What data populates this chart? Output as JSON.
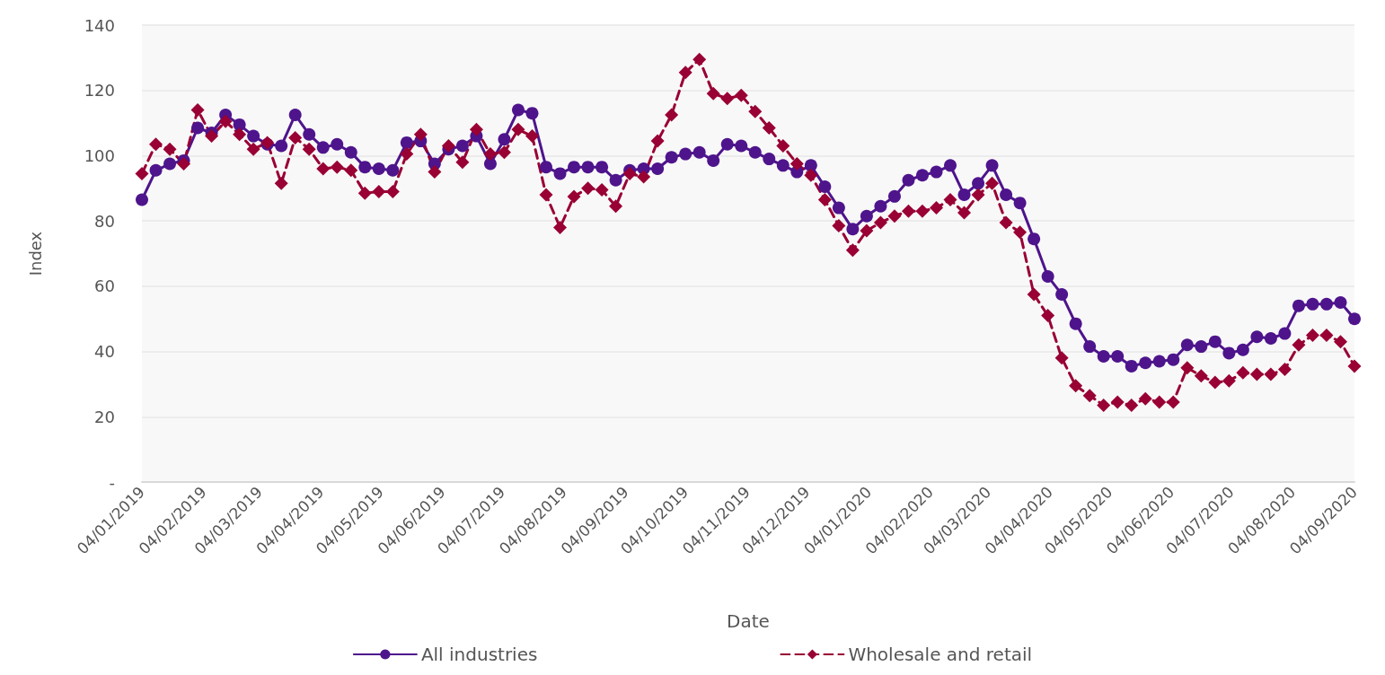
{
  "chart_data": {
    "type": "line",
    "xlabel": "Date",
    "ylabel": "Index",
    "legend": "bottom",
    "grid": "y",
    "x": [
      "2019-01-04",
      "2019-01-11",
      "2019-01-18",
      "2019-01-25",
      "2019-02-01",
      "2019-02-08",
      "2019-02-15",
      "2019-02-22",
      "2019-03-01",
      "2019-03-08",
      "2019-03-15",
      "2019-03-22",
      "2019-03-29",
      "2019-04-05",
      "2019-04-12",
      "2019-04-19",
      "2019-04-26",
      "2019-05-03",
      "2019-05-10",
      "2019-05-17",
      "2019-05-24",
      "2019-05-31",
      "2019-06-07",
      "2019-06-14",
      "2019-06-21",
      "2019-06-28",
      "2019-07-05",
      "2019-07-12",
      "2019-07-19",
      "2019-07-26",
      "2019-08-02",
      "2019-08-09",
      "2019-08-16",
      "2019-08-23",
      "2019-08-30",
      "2019-09-06",
      "2019-09-13",
      "2019-09-20",
      "2019-09-27",
      "2019-10-04",
      "2019-10-11",
      "2019-10-18",
      "2019-10-25",
      "2019-11-01",
      "2019-11-08",
      "2019-11-15",
      "2019-11-22",
      "2019-11-29",
      "2019-12-06",
      "2019-12-13",
      "2019-12-20",
      "2019-12-27",
      "2020-01-03",
      "2020-01-10",
      "2020-01-17",
      "2020-01-24",
      "2020-01-31",
      "2020-02-07",
      "2020-02-14",
      "2020-02-21",
      "2020-02-28",
      "2020-03-06",
      "2020-03-13",
      "2020-03-20",
      "2020-03-27",
      "2020-04-03",
      "2020-04-10",
      "2020-04-17",
      "2020-04-24",
      "2020-05-01",
      "2020-05-08",
      "2020-05-15",
      "2020-05-22",
      "2020-05-29",
      "2020-06-05",
      "2020-06-12",
      "2020-06-19",
      "2020-06-26",
      "2020-07-03",
      "2020-07-10",
      "2020-07-17",
      "2020-07-24",
      "2020-07-31",
      "2020-08-07",
      "2020-08-14",
      "2020-08-21",
      "2020-08-28",
      "2020-09-04"
    ],
    "xlim": [
      "2019-01-04",
      "2020-09-04"
    ],
    "xticks": [
      {
        "value": "2019-01-04",
        "label": "04/01/2019"
      },
      {
        "value": "2019-02-04",
        "label": "04/02/2019"
      },
      {
        "value": "2019-03-04",
        "label": "04/03/2019"
      },
      {
        "value": "2019-04-04",
        "label": "04/04/2019"
      },
      {
        "value": "2019-05-04",
        "label": "04/05/2019"
      },
      {
        "value": "2019-06-04",
        "label": "04/06/2019"
      },
      {
        "value": "2019-07-04",
        "label": "04/07/2019"
      },
      {
        "value": "2019-08-04",
        "label": "04/08/2019"
      },
      {
        "value": "2019-09-04",
        "label": "04/09/2019"
      },
      {
        "value": "2019-10-04",
        "label": "04/10/2019"
      },
      {
        "value": "2019-11-04",
        "label": "04/11/2019"
      },
      {
        "value": "2019-12-04",
        "label": "04/12/2019"
      },
      {
        "value": "2020-01-04",
        "label": "04/01/2020"
      },
      {
        "value": "2020-02-04",
        "label": "04/02/2020"
      },
      {
        "value": "2020-03-04",
        "label": "04/03/2020"
      },
      {
        "value": "2020-04-04",
        "label": "04/04/2020"
      },
      {
        "value": "2020-05-04",
        "label": "04/05/2020"
      },
      {
        "value": "2020-06-04",
        "label": "04/06/2020"
      },
      {
        "value": "2020-07-04",
        "label": "04/07/2020"
      },
      {
        "value": "2020-08-04",
        "label": "04/08/2020"
      },
      {
        "value": "2020-09-04",
        "label": "04/09/2020"
      }
    ],
    "ylim": [
      0,
      140
    ],
    "yticks": [
      {
        "value": 0,
        "label": "-"
      },
      20,
      40,
      60,
      80,
      100,
      120,
      140
    ],
    "series": [
      {
        "name": "All industries",
        "color": "#4e148c",
        "marker": "circle",
        "line_style": "solid",
        "values": [
          86.5,
          95.5,
          97.5,
          98.5,
          108.5,
          107,
          112.5,
          109.5,
          106,
          103.5,
          103,
          112.5,
          106.5,
          102.5,
          103.5,
          101,
          96.5,
          96,
          95.5,
          104,
          104.5,
          97.5,
          102,
          103,
          106,
          97.5,
          105,
          114,
          113,
          96.5,
          94.5,
          96.5,
          96.5,
          96.5,
          92.5,
          95.5,
          96,
          96,
          99.5,
          100.5,
          101,
          98.5,
          103.5,
          103,
          101,
          99,
          97,
          95,
          97,
          90.5,
          84,
          77.5,
          81.5,
          84.5,
          87.5,
          92.5,
          94,
          95,
          97,
          88,
          91.5,
          97,
          88,
          85.5,
          74.5,
          63,
          57.5,
          48.5,
          41.5,
          38.5,
          38.5,
          35.5,
          36.5,
          37,
          37.5,
          42,
          41.5,
          43,
          39.5,
          40.5,
          44.5,
          44,
          45.5,
          54,
          54.5,
          54.5,
          55,
          50
        ]
      },
      {
        "name": "Wholesale and retail",
        "color": "#990033",
        "marker": "diamond",
        "line_style": "dashed",
        "values": [
          94.5,
          103.5,
          102,
          97.5,
          114,
          106,
          110.5,
          106.5,
          102,
          104,
          91.5,
          105.5,
          102,
          96,
          96.5,
          95.5,
          88.5,
          89,
          89,
          100.5,
          106.5,
          95,
          103,
          98,
          108,
          100.5,
          101,
          108,
          106,
          88,
          78,
          87.5,
          90,
          89.5,
          84.5,
          94.5,
          93.5,
          104.5,
          112.5,
          125.5,
          129.5,
          119,
          117.5,
          118.5,
          113.5,
          108.5,
          103,
          97.5,
          94,
          86.5,
          78.5,
          71,
          77,
          79.5,
          81.5,
          83,
          83,
          84,
          86.5,
          82.5,
          88,
          91.5,
          79.5,
          76.5,
          57.5,
          51,
          38,
          29.5,
          26.5,
          23.5,
          24.5,
          23.5,
          25.5,
          24.5,
          24.5,
          35,
          32.5,
          30.5,
          31,
          33.5,
          33,
          33,
          34.5,
          42,
          45,
          45,
          43,
          35.5
        ]
      }
    ]
  }
}
